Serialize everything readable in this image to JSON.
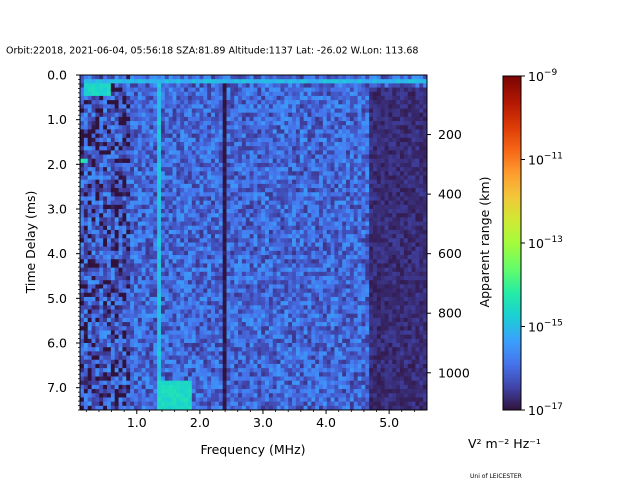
{
  "chart_data": {
    "type": "heatmap",
    "title": "Orbit:22018, 2021-06-04, 05:56:18 SZA:81.89 Altitude:1137 Lat: -26.02 W.Lon: 113.68",
    "xlabel": "Frequency (MHz)",
    "ylabel": "Time Delay (ms)",
    "y2label": "Apparent range (km)",
    "xlim": [
      0.1,
      5.6
    ],
    "ylim": [
      7.5,
      0.0
    ],
    "xticks": [
      1.0,
      2.0,
      3.0,
      4.0,
      5.0
    ],
    "xtick_labels": [
      "1.0",
      "2.0",
      "3.0",
      "4.0",
      "5.0"
    ],
    "yticks": [
      0.0,
      1.0,
      2.0,
      3.0,
      4.0,
      5.0,
      6.0,
      7.0
    ],
    "ytick_labels": [
      "0.0",
      "1.0",
      "2.0",
      "3.0",
      "4.0",
      "5.0",
      "6.0",
      "7.0"
    ],
    "y2lim_km": [
      0,
      1125
    ],
    "y2ticks_km": [
      200,
      400,
      600,
      800,
      1000
    ],
    "y2tick_labels": [
      "200",
      "400",
      "600",
      "800",
      "1000"
    ],
    "colorbar": {
      "scale": "log",
      "min_exp": -17,
      "max_exp": -9,
      "ticks_exp": [
        -17,
        -15,
        -13,
        -11,
        -9
      ],
      "tick_base": "10",
      "tick_labels_exp": [
        "−17",
        "−15",
        "−13",
        "−11",
        "−9"
      ],
      "colormap": "turbo",
      "unit_label": "V² m⁻² Hz⁻¹"
    },
    "grid": {
      "n_freq": 90,
      "n_delay": 80,
      "background_log_level": -16.0,
      "features": [
        {
          "name": "surface/near-zero echo",
          "delay_ms": [
            0.05,
            0.2
          ],
          "freq_mhz": [
            0.15,
            5.6
          ],
          "level": -15.0
        },
        {
          "name": "low-frequency enhancement",
          "delay_ms": [
            0.2,
            0.5
          ],
          "freq_mhz": [
            0.15,
            0.6
          ],
          "level": -14.6
        },
        {
          "name": "vertical interference line",
          "delay_ms": [
            0.2,
            7.5
          ],
          "freq_mhz": [
            1.33,
            1.38
          ],
          "level": -14.9
        },
        {
          "name": "cusp echo",
          "delay_ms": [
            6.8,
            7.5
          ],
          "freq_mhz": [
            1.3,
            1.9
          ],
          "level": -14.5
        },
        {
          "name": "spot",
          "delay_ms": [
            1.85,
            1.95
          ],
          "freq_mhz": [
            0.1,
            0.2
          ],
          "level": -14.3
        },
        {
          "name": "dark column",
          "delay_ms": [
            0.2,
            7.5
          ],
          "freq_mhz": [
            2.35,
            2.42
          ],
          "level": -17.0
        },
        {
          "name": "high-frequency fade",
          "delay_ms": [
            0.3,
            7.5
          ],
          "freq_mhz": [
            4.7,
            5.6
          ],
          "level": -16.7
        }
      ]
    }
  },
  "footer": {
    "credit": "Uni of LEICESTER"
  }
}
